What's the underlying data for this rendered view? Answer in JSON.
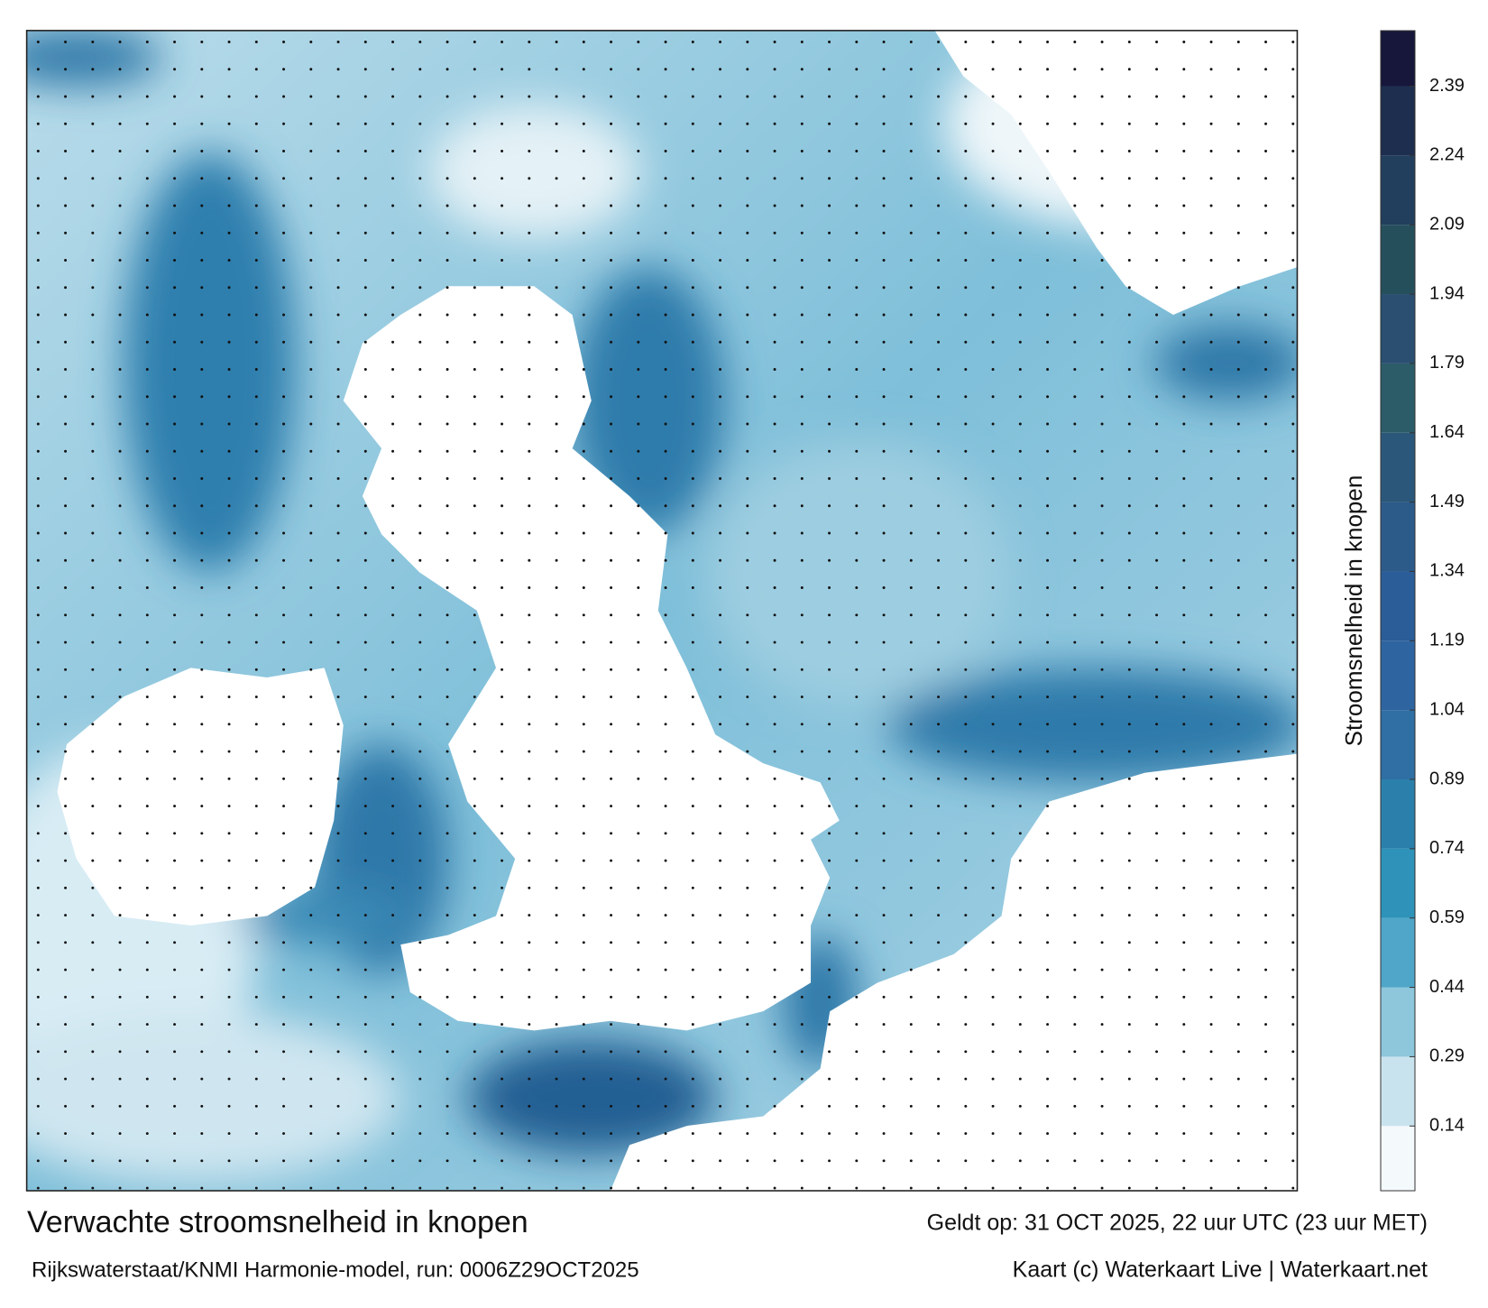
{
  "title": "Verwachte stroomsnelheid in knopen",
  "subtitle": "Rijkswaterstaat/KNMI Harmonie-model, run: 0006Z29OCT2025",
  "valid": "Geldt op: 31 OCT 2025, 22 uur UTC (23 uur MET)",
  "credit": "Kaart (c) Waterkaart Live | Waterkaart.net",
  "colorbar": {
    "label": "Stroomsnelheid in knopen",
    "lim": [
      0,
      2.51
    ],
    "ticks": [
      0.14,
      0.29,
      0.44,
      0.59,
      0.74,
      0.89,
      1.04,
      1.19,
      1.34,
      1.49,
      1.64,
      1.79,
      1.94,
      2.09,
      2.24,
      2.39
    ],
    "colors": [
      "#f4f9fb",
      "#c9e3ee",
      "#8ec6dc",
      "#4fa6c8",
      "#2e92b9",
      "#2b80ab",
      "#2f6fa3",
      "#2e65a0",
      "#2b5d98",
      "#2c5a89",
      "#2b587a",
      "#2b5c68",
      "#2a4f70",
      "#264f5c",
      "#223f5e",
      "#1d2e4e",
      "#16173a"
    ]
  }
}
